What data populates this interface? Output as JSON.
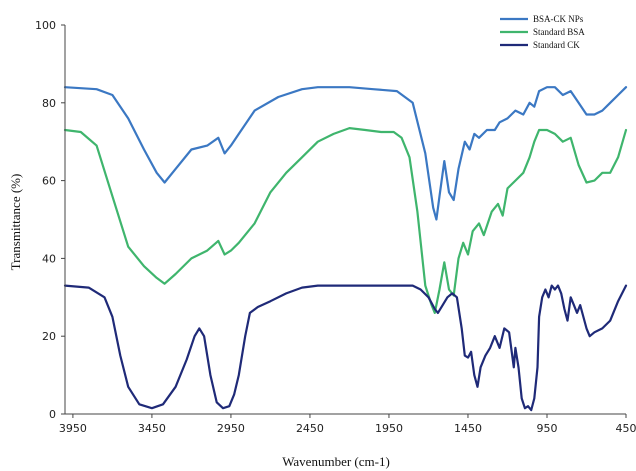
{
  "chart_data": {
    "type": "line",
    "title": "",
    "xlabel": "Wavenumber  (cm-1)",
    "ylabel": "Transmittance  (%)",
    "xlim": [
      4000,
      450
    ],
    "ylim": [
      0,
      100
    ],
    "x_ticks": [
      3950,
      3450,
      2950,
      2450,
      1950,
      1450,
      950,
      450
    ],
    "y_ticks": [
      0,
      20,
      40,
      60,
      80,
      100
    ],
    "grid": false,
    "legend_position": "top-right",
    "series": [
      {
        "name": "BSA-CK NPs",
        "color": "#3b78c3",
        "points": [
          [
            4000,
            84
          ],
          [
            3800,
            83.5
          ],
          [
            3700,
            82
          ],
          [
            3600,
            76
          ],
          [
            3500,
            68
          ],
          [
            3420,
            62
          ],
          [
            3370,
            59.5
          ],
          [
            3300,
            63
          ],
          [
            3200,
            68
          ],
          [
            3100,
            69
          ],
          [
            3030,
            71
          ],
          [
            2990,
            67
          ],
          [
            2950,
            69
          ],
          [
            2900,
            72
          ],
          [
            2800,
            78
          ],
          [
            2650,
            81.5
          ],
          [
            2500,
            83.5
          ],
          [
            2400,
            84
          ],
          [
            2200,
            84
          ],
          [
            2050,
            83.5
          ],
          [
            1900,
            83
          ],
          [
            1800,
            80
          ],
          [
            1720,
            67
          ],
          [
            1670,
            53
          ],
          [
            1650,
            50
          ],
          [
            1630,
            56
          ],
          [
            1600,
            65
          ],
          [
            1570,
            57
          ],
          [
            1540,
            55
          ],
          [
            1510,
            63
          ],
          [
            1470,
            70
          ],
          [
            1440,
            68
          ],
          [
            1410,
            72
          ],
          [
            1380,
            71
          ],
          [
            1330,
            73
          ],
          [
            1280,
            73
          ],
          [
            1250,
            75
          ],
          [
            1200,
            76
          ],
          [
            1150,
            78
          ],
          [
            1100,
            77
          ],
          [
            1060,
            80
          ],
          [
            1030,
            79
          ],
          [
            1000,
            83
          ],
          [
            950,
            84
          ],
          [
            900,
            84
          ],
          [
            850,
            82
          ],
          [
            800,
            83
          ],
          [
            750,
            80
          ],
          [
            700,
            77
          ],
          [
            650,
            77
          ],
          [
            600,
            78
          ],
          [
            550,
            80
          ],
          [
            500,
            82
          ],
          [
            450,
            84
          ]
        ]
      },
      {
        "name": "Standard BSA",
        "color": "#3fb56d",
        "points": [
          [
            4000,
            73
          ],
          [
            3900,
            72.5
          ],
          [
            3800,
            69
          ],
          [
            3700,
            56
          ],
          [
            3600,
            43
          ],
          [
            3500,
            38
          ],
          [
            3420,
            35
          ],
          [
            3370,
            33.5
          ],
          [
            3300,
            36
          ],
          [
            3200,
            40
          ],
          [
            3100,
            42
          ],
          [
            3030,
            44.5
          ],
          [
            2990,
            41
          ],
          [
            2950,
            42
          ],
          [
            2900,
            44
          ],
          [
            2800,
            49
          ],
          [
            2700,
            57
          ],
          [
            2600,
            62
          ],
          [
            2500,
            66
          ],
          [
            2400,
            70
          ],
          [
            2300,
            72
          ],
          [
            2200,
            73.5
          ],
          [
            2100,
            73
          ],
          [
            2000,
            72.5
          ],
          [
            1920,
            72.5
          ],
          [
            1870,
            71
          ],
          [
            1820,
            66
          ],
          [
            1770,
            52
          ],
          [
            1720,
            33
          ],
          [
            1680,
            28
          ],
          [
            1660,
            26
          ],
          [
            1630,
            32
          ],
          [
            1600,
            39
          ],
          [
            1570,
            32
          ],
          [
            1540,
            30.5
          ],
          [
            1510,
            40
          ],
          [
            1480,
            44
          ],
          [
            1450,
            41
          ],
          [
            1420,
            47
          ],
          [
            1380,
            49
          ],
          [
            1350,
            46
          ],
          [
            1300,
            52
          ],
          [
            1260,
            54
          ],
          [
            1230,
            51
          ],
          [
            1200,
            58
          ],
          [
            1150,
            60
          ],
          [
            1100,
            62
          ],
          [
            1060,
            66
          ],
          [
            1030,
            70
          ],
          [
            1000,
            73
          ],
          [
            950,
            73
          ],
          [
            900,
            72
          ],
          [
            850,
            70
          ],
          [
            800,
            71
          ],
          [
            750,
            64
          ],
          [
            700,
            59.5
          ],
          [
            650,
            60
          ],
          [
            600,
            62
          ],
          [
            550,
            62
          ],
          [
            500,
            66
          ],
          [
            450,
            73
          ]
        ]
      },
      {
        "name": "Standard CK",
        "color": "#1f2a78",
        "points": [
          [
            4000,
            33
          ],
          [
            3850,
            32.5
          ],
          [
            3750,
            30
          ],
          [
            3700,
            25
          ],
          [
            3650,
            15
          ],
          [
            3600,
            7
          ],
          [
            3530,
            2.5
          ],
          [
            3450,
            1.5
          ],
          [
            3380,
            2.5
          ],
          [
            3300,
            7
          ],
          [
            3230,
            14
          ],
          [
            3180,
            20
          ],
          [
            3150,
            22
          ],
          [
            3120,
            20
          ],
          [
            3080,
            10
          ],
          [
            3040,
            3
          ],
          [
            3000,
            1.5
          ],
          [
            2960,
            2
          ],
          [
            2930,
            5
          ],
          [
            2900,
            10
          ],
          [
            2860,
            20
          ],
          [
            2830,
            26
          ],
          [
            2780,
            27.5
          ],
          [
            2700,
            29
          ],
          [
            2600,
            31
          ],
          [
            2500,
            32.5
          ],
          [
            2400,
            33
          ],
          [
            2250,
            33
          ],
          [
            2100,
            33
          ],
          [
            2000,
            33
          ],
          [
            1900,
            33
          ],
          [
            1800,
            33
          ],
          [
            1750,
            32
          ],
          [
            1700,
            30
          ],
          [
            1660,
            27
          ],
          [
            1640,
            26
          ],
          [
            1610,
            28
          ],
          [
            1580,
            30
          ],
          [
            1550,
            31
          ],
          [
            1520,
            30
          ],
          [
            1490,
            22
          ],
          [
            1470,
            15
          ],
          [
            1450,
            14.5
          ],
          [
            1430,
            16
          ],
          [
            1410,
            10
          ],
          [
            1390,
            7
          ],
          [
            1370,
            12
          ],
          [
            1340,
            15
          ],
          [
            1310,
            17
          ],
          [
            1280,
            20
          ],
          [
            1250,
            17
          ],
          [
            1220,
            22
          ],
          [
            1190,
            21
          ],
          [
            1160,
            12
          ],
          [
            1150,
            17
          ],
          [
            1130,
            12
          ],
          [
            1110,
            4
          ],
          [
            1090,
            1.5
          ],
          [
            1070,
            2
          ],
          [
            1050,
            1
          ],
          [
            1030,
            4
          ],
          [
            1010,
            12
          ],
          [
            1000,
            25
          ],
          [
            980,
            30
          ],
          [
            960,
            32
          ],
          [
            940,
            30
          ],
          [
            920,
            33
          ],
          [
            900,
            32
          ],
          [
            880,
            33
          ],
          [
            860,
            31
          ],
          [
            840,
            27
          ],
          [
            820,
            24
          ],
          [
            800,
            30
          ],
          [
            780,
            28
          ],
          [
            760,
            26
          ],
          [
            740,
            28
          ],
          [
            700,
            22
          ],
          [
            680,
            20
          ],
          [
            650,
            21
          ],
          [
            600,
            22
          ],
          [
            550,
            24
          ],
          [
            500,
            29
          ],
          [
            450,
            33
          ]
        ]
      }
    ]
  }
}
